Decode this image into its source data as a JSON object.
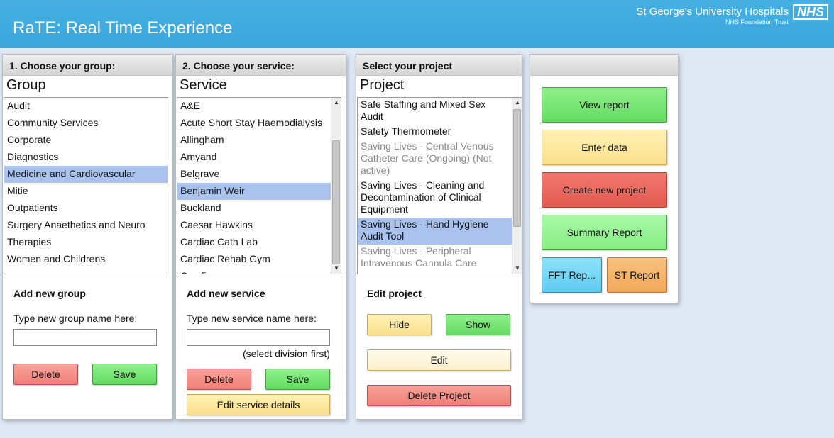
{
  "header": {
    "title": "RaTE: Real Time Experience",
    "org_name": "St George's University Hospitals",
    "org_sub": "NHS Foundation Trust",
    "nhs_logo": "NHS"
  },
  "group_panel": {
    "heading": "1. Choose your group:",
    "list_title": "Group",
    "items": [
      "Audit",
      "Community Services",
      "Corporate",
      "Diagnostics",
      "Medicine and Cardiovascular",
      "Mitie",
      "Outpatients",
      "Surgery Anaethetics and Neuro",
      "Therapies",
      "Women and Childrens"
    ],
    "selected": "Medicine and Cardiovascular",
    "add_label": "Add new group",
    "input_hint": "Type new group name here:",
    "input_value": "",
    "delete_label": "Delete",
    "save_label": "Save"
  },
  "service_panel": {
    "heading": "2. Choose your service:",
    "list_title": "Service",
    "items": [
      "A&E",
      "Acute Short Stay Haemodialysis",
      "Allingham",
      "Amyand",
      "Belgrave",
      "Benjamin Weir",
      "Buckland",
      "Caesar Hawkins",
      "Cardiac Cath Lab",
      "Cardiac Rehab Gym",
      "Caroline"
    ],
    "selected": "Benjamin Weir",
    "add_label": "Add new service",
    "input_hint": "Type new service name here:",
    "input_value": "",
    "division_note": "(select division first)",
    "delete_label": "Delete",
    "save_label": "Save",
    "edit_details_label": "Edit service details"
  },
  "project_panel": {
    "heading": "Select your project",
    "list_title": "Project",
    "items": [
      {
        "line1": "Safe Staffing and Mixed Sex",
        "line2": "Audit",
        "line3": "",
        "active": true,
        "selected": false
      },
      {
        "line1": "Safety Thermometer",
        "line2": "",
        "line3": "",
        "active": true,
        "selected": false
      },
      {
        "line1": "Saving Lives - Central Venous",
        "line2": "Catheter Care (Ongoing) (Not",
        "line3": "active)",
        "active": false,
        "selected": false
      },
      {
        "line1": "Saving Lives - Cleaning and",
        "line2": "Decontamination of Clinical",
        "line3": "Equipment",
        "active": true,
        "selected": false
      },
      {
        "line1": "Saving Lives - Hand Hygiene",
        "line2": "Audit Tool",
        "line3": "",
        "active": true,
        "selected": true
      },
      {
        "line1": "Saving Lives - Peripheral",
        "line2": "Intravenous Cannula Care",
        "line3": "",
        "active": false,
        "selected": false
      }
    ],
    "edit_label": "Edit project",
    "hide_label": "Hide",
    "show_label": "Show",
    "edit_button_label": "Edit",
    "delete_project_label": "Delete Project"
  },
  "actions_panel": {
    "view_report": "View report",
    "enter_data": "Enter data",
    "create_project": "Create new project",
    "summary_report": "Summary Report",
    "fft_report": "FFT Rep...",
    "st_report": "ST Report"
  },
  "colors": {
    "header_blue": "#3aa6dc",
    "selected_row": "#a9c3ee",
    "inactive_text": "#888888"
  }
}
